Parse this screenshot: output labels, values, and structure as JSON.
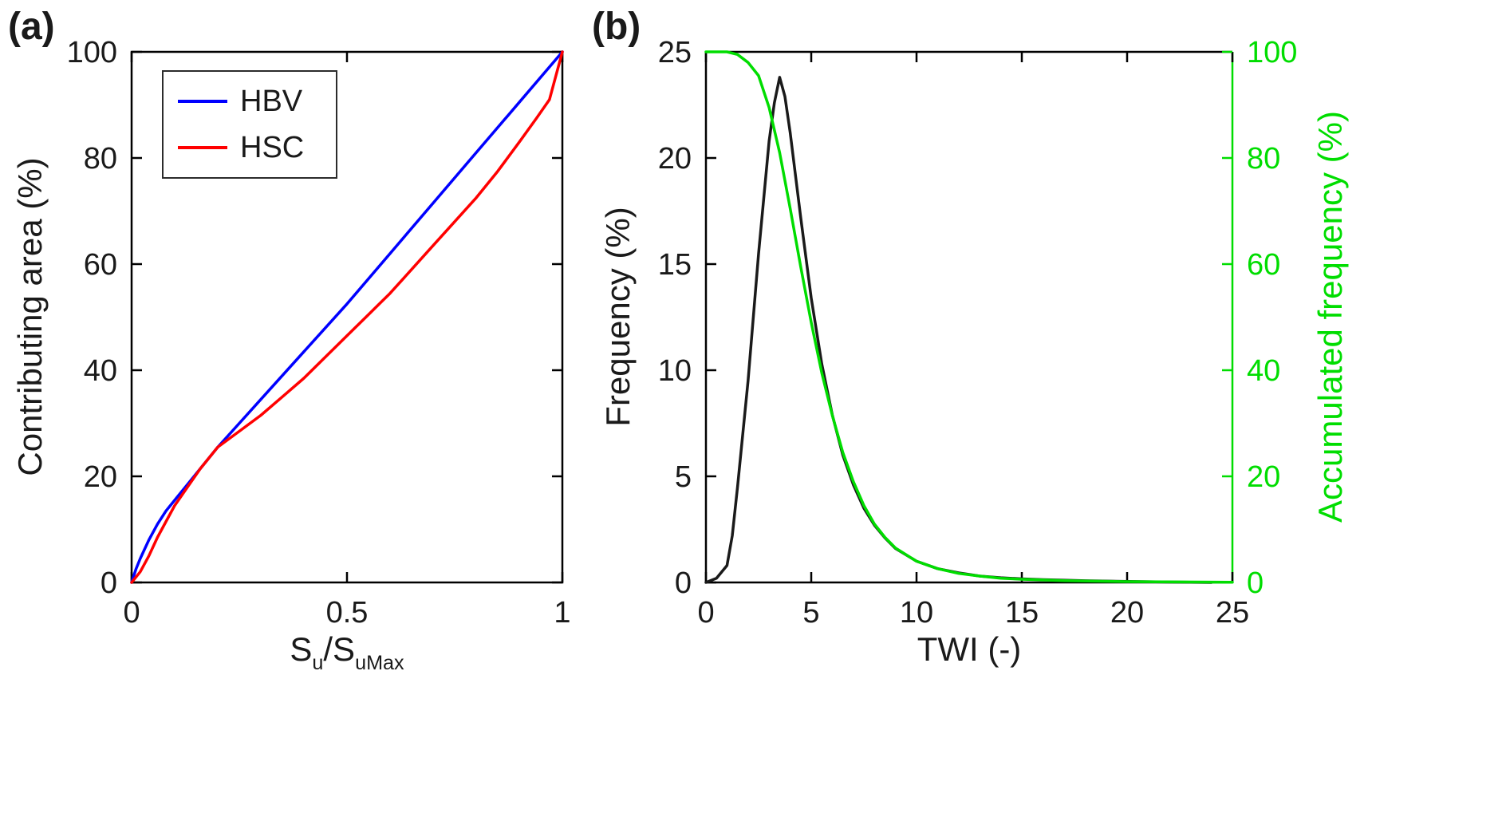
{
  "panels": {
    "a": {
      "label": "(a)"
    },
    "b": {
      "label": "(b)"
    }
  },
  "colors": {
    "hbv_line": "#0000ff",
    "hsc_line": "#ff0000",
    "frequency_line": "#1a1a1a",
    "accumulated_line": "#00dd00",
    "axis": "#000000",
    "background": "#ffffff"
  },
  "chart_data": [
    {
      "panel": "a",
      "type": "line",
      "title": "",
      "xlabel_parts": [
        {
          "text": "S",
          "sub": false
        },
        {
          "text": "u",
          "sub": true
        },
        {
          "text": "/S",
          "sub": false
        },
        {
          "text": "uMax",
          "sub": true
        }
      ],
      "ylabel": "Contributing area (%)",
      "xlim": [
        0,
        1
      ],
      "ylim": [
        0,
        100
      ],
      "xticks": [
        "0",
        "0.5",
        "1"
      ],
      "yticks": [
        "0",
        "20",
        "40",
        "60",
        "80",
        "100"
      ],
      "grid": false,
      "legend_position": "top-left",
      "series": [
        {
          "name": "HBV",
          "color": "#0000ff",
          "x": [
            0,
            0.01,
            0.02,
            0.04,
            0.06,
            0.08,
            0.1,
            0.13,
            0.16,
            0.2,
            0.25,
            0.3,
            0.4,
            0.5,
            0.6,
            0.7,
            0.8,
            0.9,
            1.0
          ],
          "y": [
            0,
            2.5,
            4.5,
            8,
            11,
            13.5,
            15.5,
            18.5,
            21.5,
            25.5,
            30,
            34.5,
            43.5,
            52.5,
            62,
            71.5,
            81,
            90.5,
            100
          ]
        },
        {
          "name": "HSC",
          "color": "#ff0000",
          "x": [
            0,
            0.02,
            0.04,
            0.06,
            0.08,
            0.1,
            0.13,
            0.16,
            0.2,
            0.25,
            0.3,
            0.35,
            0.4,
            0.45,
            0.5,
            0.55,
            0.6,
            0.65,
            0.7,
            0.75,
            0.8,
            0.85,
            0.9,
            0.94,
            0.97,
            1.0
          ],
          "y": [
            0,
            2,
            5,
            8.5,
            11.5,
            14.5,
            18,
            21.5,
            25.5,
            28.5,
            31.5,
            35,
            38.5,
            42.5,
            46.5,
            50.5,
            54.5,
            59,
            63.5,
            68,
            72.5,
            77.5,
            83,
            87.5,
            91,
            100
          ]
        }
      ]
    },
    {
      "panel": "b",
      "type": "line",
      "title": "",
      "xlabel": "TWI (-)",
      "ylabel_left": "Frequency (%)",
      "ylabel_right": "Accumulated frequency (%)",
      "xlim": [
        0,
        25
      ],
      "ylim_left": [
        0,
        25
      ],
      "ylim_right": [
        0,
        100
      ],
      "xticks": [
        "0",
        "5",
        "10",
        "15",
        "20",
        "25"
      ],
      "yticks_left": [
        "0",
        "5",
        "10",
        "15",
        "20",
        "25"
      ],
      "yticks_right": [
        "0",
        "20",
        "40",
        "60",
        "80",
        "100"
      ],
      "grid": false,
      "axis_colors": {
        "left": "#000000",
        "right": "#00dd00"
      },
      "series": [
        {
          "name": "Frequency",
          "yaxis": "left",
          "color": "#1a1a1a",
          "x": [
            0,
            0.5,
            1,
            1.25,
            1.5,
            2,
            2.5,
            3,
            3.25,
            3.5,
            3.75,
            4,
            4.5,
            5,
            5.5,
            6,
            6.5,
            7,
            7.5,
            8,
            8.5,
            9,
            10,
            11,
            12,
            13,
            14,
            15,
            16,
            18,
            20,
            22,
            24
          ],
          "y": [
            0,
            0.2,
            0.8,
            2.2,
            4.5,
            9.5,
            15.5,
            20.8,
            22.6,
            23.8,
            22.9,
            21.2,
            17.2,
            13.4,
            10.3,
            7.9,
            6.0,
            4.6,
            3.5,
            2.7,
            2.1,
            1.6,
            1.0,
            0.65,
            0.45,
            0.3,
            0.22,
            0.17,
            0.13,
            0.08,
            0.05,
            0.02,
            0
          ]
        },
        {
          "name": "Accumulated frequency",
          "yaxis": "right",
          "color": "#00dd00",
          "x": [
            0,
            1,
            1.5,
            2,
            2.5,
            3,
            3.5,
            4,
            4.5,
            5,
            5.5,
            6,
            6.5,
            7,
            7.5,
            8,
            8.5,
            9,
            10,
            11,
            12,
            13,
            14,
            15,
            17,
            20,
            25
          ],
          "y": [
            100,
            100,
            99.5,
            98,
            95.5,
            89.5,
            81,
            70.5,
            59.5,
            49,
            39.5,
            31.5,
            24.5,
            19,
            14.5,
            11,
            8.5,
            6.5,
            4,
            2.6,
            1.7,
            1.2,
            0.8,
            0.6,
            0.35,
            0.15,
            0.05
          ]
        }
      ]
    }
  ]
}
